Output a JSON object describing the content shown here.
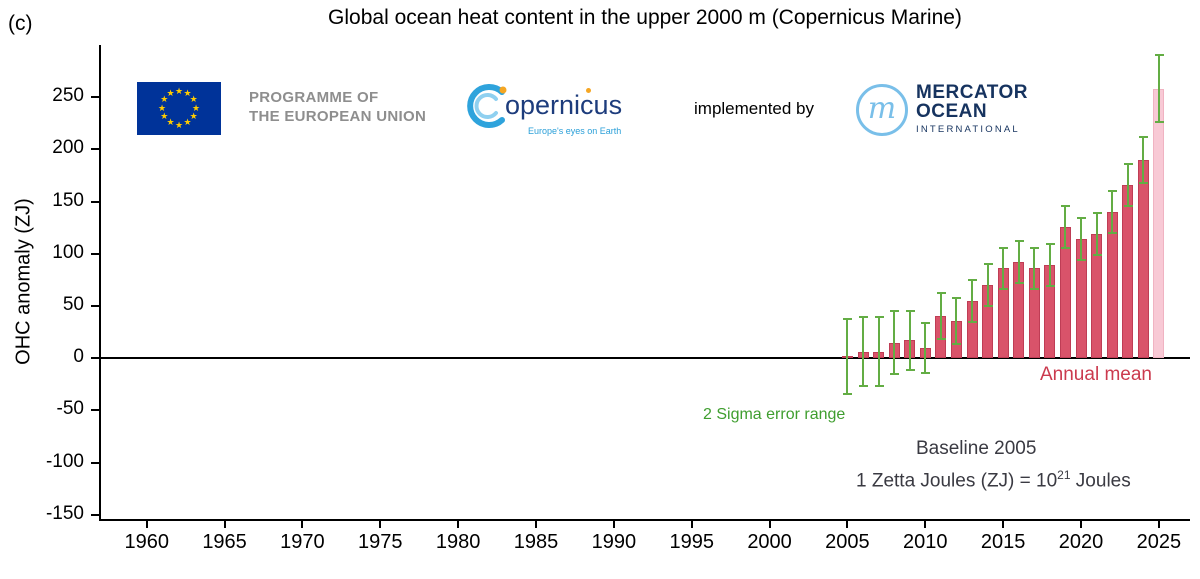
{
  "labels": {
    "corner": "(c)"
  },
  "header_logos": {
    "eu_programme_line1": "PROGRAMME OF",
    "eu_programme_line2": "THE EUROPEAN UNION",
    "copernicus_wordmark": "opernicus",
    "copernicus_tagline": "Europe's eyes on Earth",
    "implemented_by": "implemented by",
    "mercator_m": "m",
    "mercator_line1": "MERCATOR",
    "mercator_line2": "OCEAN",
    "mercator_line3": "INTERNATIONAL"
  },
  "annotations": {
    "annual_mean": "Annual mean",
    "sigma_range": "2 Sigma error range",
    "baseline": "Baseline 2005",
    "zetta_prefix": "1 Zetta Joules (ZJ) = 10",
    "zetta_sup": "21",
    "zetta_suffix": " Joules"
  },
  "colors": {
    "bar": "#d9536a",
    "bar_edge": "#bf3d55",
    "bar_provisional": "#f8c9d5",
    "bar_provisional_edge": "#f0b3c2",
    "error": "#63ad44",
    "annual_mean_text": "#cb3a4e",
    "sigma_text": "#3f9e2f",
    "eu_blue": "#003399",
    "eu_star": "#ffcc00",
    "copernicus_blue": "#2a9fd8",
    "copernicus_navy": "#1d3c7c",
    "mercator_navy": "#16335f",
    "mercator_blue": "#79bfe9",
    "note_text": "#3a3a42"
  },
  "chart_data": {
    "type": "bar",
    "title": "Global ocean heat content in the upper 2000 m (Copernicus Marine)",
    "xlabel": "",
    "ylabel": "OHC anomaly (ZJ)",
    "unit": "ZJ",
    "xlim": [
      1957,
      2027
    ],
    "ylim": [
      -155,
      300
    ],
    "yticks": [
      -150,
      -100,
      -50,
      0,
      50,
      100,
      150,
      200,
      250
    ],
    "xticks": [
      1960,
      1965,
      1970,
      1975,
      1980,
      1985,
      1990,
      1995,
      2000,
      2005,
      2010,
      2015,
      2020,
      2025
    ],
    "grid": false,
    "baseline_year": 2005,
    "series_name": "Annual mean",
    "error_name": "2 Sigma error range",
    "points": [
      {
        "year": 2005,
        "value": 2,
        "err": 36
      },
      {
        "year": 2006,
        "value": 6,
        "err": 33
      },
      {
        "year": 2007,
        "value": 6,
        "err": 33
      },
      {
        "year": 2008,
        "value": 15,
        "err": 30
      },
      {
        "year": 2009,
        "value": 17,
        "err": 28
      },
      {
        "year": 2010,
        "value": 10,
        "err": 24
      },
      {
        "year": 2011,
        "value": 40,
        "err": 22
      },
      {
        "year": 2012,
        "value": 36,
        "err": 22
      },
      {
        "year": 2013,
        "value": 55,
        "err": 20
      },
      {
        "year": 2014,
        "value": 70,
        "err": 20
      },
      {
        "year": 2015,
        "value": 86,
        "err": 20
      },
      {
        "year": 2016,
        "value": 92,
        "err": 20
      },
      {
        "year": 2017,
        "value": 86,
        "err": 20
      },
      {
        "year": 2018,
        "value": 89,
        "err": 20
      },
      {
        "year": 2019,
        "value": 126,
        "err": 20
      },
      {
        "year": 2020,
        "value": 114,
        "err": 20
      },
      {
        "year": 2021,
        "value": 119,
        "err": 20
      },
      {
        "year": 2022,
        "value": 140,
        "err": 20
      },
      {
        "year": 2023,
        "value": 166,
        "err": 20
      },
      {
        "year": 2024,
        "value": 190,
        "err": 22
      },
      {
        "year": 2025,
        "value": 258,
        "err": 32,
        "provisional": true
      }
    ]
  }
}
